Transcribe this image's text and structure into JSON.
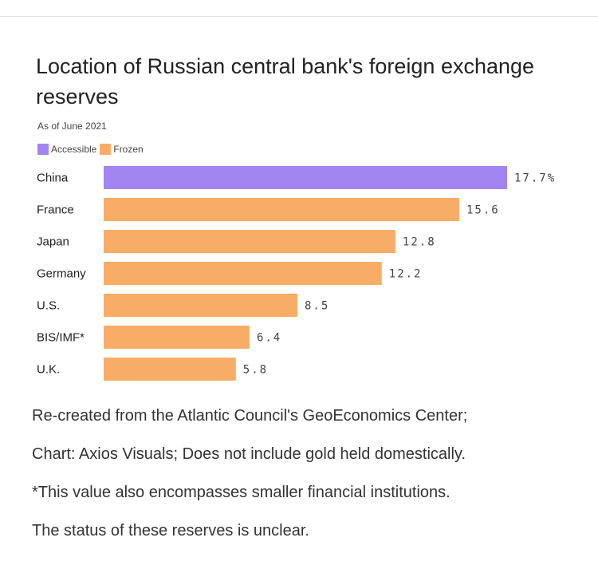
{
  "chart_data": {
    "type": "bar",
    "orientation": "horizontal",
    "title": "Location of Russian central bank's foreign exchange reserves",
    "subtitle": "As of June 2021",
    "legend": [
      {
        "name": "Accessible",
        "color": "#a285f0"
      },
      {
        "name": "Frozen",
        "color": "#f8ad66"
      }
    ],
    "categories": [
      "China",
      "France",
      "Japan",
      "Germany",
      "U.S.",
      "BIS/IMF*",
      "U.K."
    ],
    "values": [
      17.7,
      15.6,
      12.8,
      12.2,
      8.5,
      6.4,
      5.8
    ],
    "value_labels": [
      "17.7%",
      "15.6",
      "12.8",
      "12.2",
      "8.5",
      "6.4",
      "5.8"
    ],
    "status": [
      "Accessible",
      "Frozen",
      "Frozen",
      "Frozen",
      "Frozen",
      "Frozen",
      "Frozen"
    ],
    "xlim": [
      0,
      17.7
    ],
    "grid": false
  },
  "notes": [
    "Re-created from the Atlantic Council's GeoEconomics Center;",
    "Chart: Axios Visuals; Does not include gold held domestically.",
    "*This value also encompasses smaller financial institutions.",
    "The status of these reserves is unclear."
  ]
}
